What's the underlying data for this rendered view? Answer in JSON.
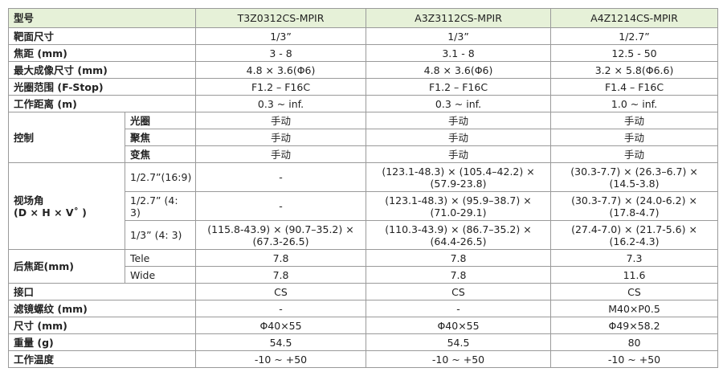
{
  "table": {
    "header": [
      "型号",
      "T3Z0312CS-MPIR",
      "A3Z3112CS-MPIR",
      "A4Z1214CS-MPIR"
    ],
    "rows": [
      {
        "label": "靶面尺寸",
        "cells": [
          "1/3”",
          "1/3”",
          "1/2.7”"
        ]
      },
      {
        "label": "焦距 (mm)",
        "cells": [
          "3 - 8",
          "3.1 - 8",
          "12.5 - 50"
        ]
      },
      {
        "label": "最大成像尺寸 (mm)",
        "cells": [
          "4.8 × 3.6(Φ6)",
          "4.8 × 3.6(Φ6)",
          "3.2 × 5.8(Φ6.6)"
        ]
      },
      {
        "label": "光圈范围 (F-Stop)",
        "cells": [
          "F1.2 – F16C",
          "F1.2 – F16C",
          "F1.4 – F16C"
        ]
      },
      {
        "label": "工作距离 (m)",
        "cells": [
          "0.3 ~ inf.",
          "0.3 ~ inf.",
          "1.0 ~ inf."
        ]
      },
      {
        "label": "控制",
        "subrows": [
          {
            "label": "光圈",
            "cells": [
              "手动",
              "手动",
              "手动"
            ]
          },
          {
            "label": "聚焦",
            "cells": [
              "手动",
              "手动",
              "手动"
            ]
          },
          {
            "label": "变焦",
            "cells": [
              "手动",
              "手动",
              "手动"
            ]
          }
        ]
      },
      {
        "label": "视场角\n(D × H × V˚ )",
        "subrows": [
          {
            "label": "1/2.7”(16:9)",
            "cells": [
              "-",
              "(123.1-48.3) × (105.4–42.2) × (57.9-23.8)",
              "(30.3-7.7) × (26.3–6.7) × (14.5-3.8)"
            ]
          },
          {
            "label": "1/2.7” (4: 3)",
            "cells": [
              "-",
              "(123.1-48.3) × (95.9–38.7) × (71.0-29.1)",
              "(30.3-7.7) × (24.0-6.2) × (17.8-4.7)"
            ]
          },
          {
            "label": "1/3” (4: 3)",
            "cells": [
              "(115.8-43.9) × (90.7–35.2) × (67.3-26.5)",
              "(110.3-43.9) × (86.7–35.2) × (64.4-26.5)",
              "(27.4-7.0) × (21.7-5.6) × (16.2-4.3)"
            ]
          }
        ]
      },
      {
        "label": "后焦距(mm)",
        "subrows": [
          {
            "label": "Tele",
            "cells": [
              "7.8",
              "7.8",
              "7.3"
            ]
          },
          {
            "label": "Wide",
            "cells": [
              "7.8",
              "7.8",
              "11.6"
            ]
          }
        ]
      },
      {
        "label": "接口",
        "cells": [
          "CS",
          "CS",
          "CS"
        ]
      },
      {
        "label": "滤镜螺纹 (mm)",
        "cells": [
          "-",
          "-",
          "M40×P0.5"
        ]
      },
      {
        "label": "尺寸 (mm)",
        "cells": [
          "Φ40×55",
          "Φ40×55",
          "Φ49×58.2"
        ]
      },
      {
        "label": "重量 (g)",
        "cells": [
          "54.5",
          "54.5",
          "80"
        ]
      },
      {
        "label": "工作温度",
        "cells": [
          "-10 ~ +50",
          "-10 ~ +50",
          "-10 ~ +50"
        ]
      }
    ]
  }
}
